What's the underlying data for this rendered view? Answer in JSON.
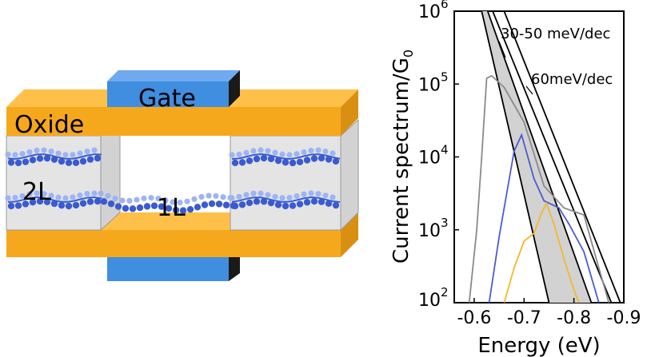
{
  "device": {
    "gate_top_label": "Gate",
    "oxide_label": "Oxide",
    "left_region_label": "2L",
    "channel_label": "1L",
    "colors": {
      "oxide": "#F6A81C",
      "oxide_dark": "#D98F12",
      "gate": "#3F8EE0",
      "atom": "#3A5BD0",
      "atom_light": "#9DB4F2",
      "box": "#E4E4E4"
    }
  },
  "chart_data": {
    "type": "line",
    "xlabel": "Energy (eV)",
    "ylabel": "Current spectrum/G",
    "ylabel_sub": "0",
    "x_ticks": [
      "-0.6",
      "-0.7",
      "-0.8",
      "-0.9"
    ],
    "y_ticks": [
      {
        "base": "10",
        "exp": "2"
      },
      {
        "base": "10",
        "exp": "3"
      },
      {
        "base": "10",
        "exp": "4"
      },
      {
        "base": "10",
        "exp": "5"
      },
      {
        "base": "10",
        "exp": "6"
      }
    ],
    "xlim": [
      -0.56,
      -0.9
    ],
    "ylim": [
      100,
      1000000
    ],
    "yscale": "log",
    "annotations": [
      "30-50 meV/dec",
      "60meV/dec"
    ],
    "series": [
      {
        "color": "#8A8A8A",
        "points": [
          [
            -0.59,
            100
          ],
          [
            -0.605,
            1000
          ],
          [
            -0.615,
            10000
          ],
          [
            -0.625,
            120000
          ],
          [
            -0.635,
            130000
          ],
          [
            -0.66,
            90000
          ],
          [
            -0.7,
            30000
          ],
          [
            -0.74,
            4000
          ],
          [
            -0.78,
            2000
          ],
          [
            -0.82,
            1600
          ],
          [
            -0.85,
            300
          ],
          [
            -0.87,
            100
          ]
        ]
      },
      {
        "color": "#4B5BD0",
        "points": [
          [
            -0.63,
            100
          ],
          [
            -0.65,
            800
          ],
          [
            -0.68,
            12000
          ],
          [
            -0.695,
            20000
          ],
          [
            -0.72,
            5000
          ],
          [
            -0.74,
            2500
          ],
          [
            -0.77,
            2000
          ],
          [
            -0.79,
            1200
          ],
          [
            -0.82,
            500
          ],
          [
            -0.85,
            100
          ]
        ]
      },
      {
        "color": "#F2B82A",
        "points": [
          [
            -0.66,
            100
          ],
          [
            -0.68,
            300
          ],
          [
            -0.7,
            700
          ],
          [
            -0.72,
            900
          ],
          [
            -0.735,
            1700
          ],
          [
            -0.745,
            2300
          ],
          [
            -0.76,
            1200
          ],
          [
            -0.78,
            400
          ],
          [
            -0.8,
            150
          ],
          [
            -0.81,
            100
          ]
        ]
      }
    ],
    "guide_lines": [
      {
        "label": "30-50 meV/dec",
        "points": [
          [
            -0.615,
            1000000
          ],
          [
            -0.75,
            100
          ]
        ]
      },
      {
        "label": "30-50 meV/dec",
        "points": [
          [
            -0.627,
            1000000
          ],
          [
            -0.835,
            100
          ]
        ]
      },
      {
        "label": "60meV/dec",
        "points": [
          [
            -0.637,
            1000000
          ],
          [
            -0.875,
            100
          ]
        ]
      },
      {
        "label": "60meV/dec",
        "points": [
          [
            -0.66,
            1000000
          ],
          [
            -0.893,
            100
          ]
        ]
      }
    ]
  }
}
